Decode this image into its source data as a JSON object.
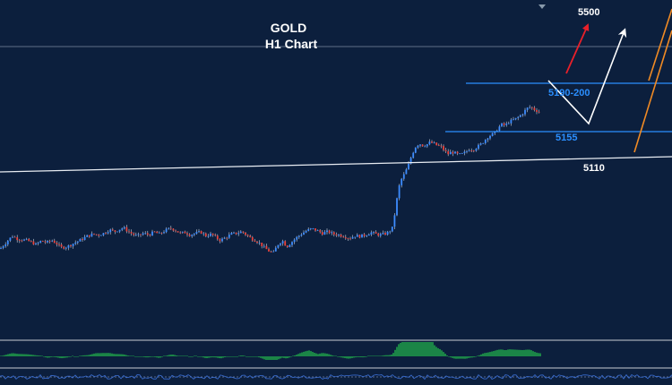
{
  "chart_data": {
    "type": "candlestick",
    "title": "GOLD",
    "subtitle": "H1 Chart",
    "level_labels": {
      "target": "5500",
      "resistance": "5190-200",
      "support": "5155",
      "trendline": "5110"
    },
    "annotation_values": {
      "target": 5500,
      "resistance_low": 5190,
      "resistance_high": 5200,
      "support": 5155,
      "trendline": 5110
    },
    "price_path": [
      [
        0,
        4935
      ],
      [
        6,
        4948
      ],
      [
        10,
        4958
      ],
      [
        14,
        4965
      ],
      [
        20,
        4958
      ],
      [
        30,
        4955
      ],
      [
        36,
        4950
      ],
      [
        40,
        4945
      ],
      [
        46,
        4954
      ],
      [
        52,
        4950
      ],
      [
        58,
        4955
      ],
      [
        63,
        4948
      ],
      [
        68,
        4938
      ],
      [
        75,
        4940
      ],
      [
        82,
        4948
      ],
      [
        90,
        4956
      ],
      [
        97,
        4965
      ],
      [
        104,
        4970
      ],
      [
        110,
        4968
      ],
      [
        116,
        4972
      ],
      [
        122,
        4980
      ],
      [
        128,
        4976
      ],
      [
        134,
        4982
      ],
      [
        138,
        4985
      ],
      [
        142,
        4978
      ],
      [
        148,
        4970
      ],
      [
        153,
        4965
      ],
      [
        160,
        4972
      ],
      [
        166,
        4968
      ],
      [
        172,
        4975
      ],
      [
        178,
        4970
      ],
      [
        184,
        4978
      ],
      [
        190,
        4984
      ],
      [
        195,
        4980
      ],
      [
        201,
        4972
      ],
      [
        207,
        4974
      ],
      [
        212,
        4968
      ],
      [
        218,
        4972
      ],
      [
        224,
        4975
      ],
      [
        230,
        4966
      ],
      [
        236,
        4970
      ],
      [
        242,
        4960
      ],
      [
        246,
        4955
      ],
      [
        252,
        4962
      ],
      [
        258,
        4970
      ],
      [
        264,
        4972
      ],
      [
        270,
        4976
      ],
      [
        275,
        4968
      ],
      [
        280,
        4960
      ],
      [
        285,
        4955
      ],
      [
        290,
        4948
      ],
      [
        295,
        4938
      ],
      [
        300,
        4930
      ],
      [
        305,
        4925
      ],
      [
        310,
        4945
      ],
      [
        315,
        4955
      ],
      [
        320,
        4940
      ],
      [
        325,
        4950
      ],
      [
        330,
        4960
      ],
      [
        336,
        4970
      ],
      [
        342,
        4978
      ],
      [
        348,
        4983
      ],
      [
        354,
        4978
      ],
      [
        360,
        4972
      ],
      [
        366,
        4976
      ],
      [
        372,
        4970
      ],
      [
        378,
        4968
      ],
      [
        384,
        4965
      ],
      [
        390,
        4960
      ],
      [
        396,
        4966
      ],
      [
        402,
        4965
      ],
      [
        408,
        4968
      ],
      [
        414,
        4974
      ],
      [
        418,
        4971
      ],
      [
        424,
        4968
      ],
      [
        430,
        4971
      ],
      [
        434,
        4975
      ],
      [
        438,
        4985
      ],
      [
        440,
        5010
      ],
      [
        442,
        5040
      ],
      [
        445,
        5080
      ],
      [
        448,
        5100
      ],
      [
        452,
        5115
      ],
      [
        456,
        5135
      ],
      [
        460,
        5160
      ],
      [
        464,
        5178
      ],
      [
        468,
        5185
      ],
      [
        472,
        5180
      ],
      [
        476,
        5182
      ],
      [
        480,
        5188
      ],
      [
        484,
        5185
      ],
      [
        488,
        5180
      ],
      [
        492,
        5178
      ],
      [
        496,
        5168
      ],
      [
        500,
        5160
      ],
      [
        504,
        5165
      ],
      [
        508,
        5162
      ],
      [
        512,
        5158
      ],
      [
        516,
        5160
      ],
      [
        520,
        5165
      ],
      [
        524,
        5172
      ],
      [
        528,
        5170
      ],
      [
        532,
        5176
      ],
      [
        536,
        5182
      ],
      [
        540,
        5190
      ],
      [
        544,
        5200
      ],
      [
        548,
        5205
      ],
      [
        552,
        5210
      ],
      [
        556,
        5222
      ],
      [
        560,
        5230
      ],
      [
        564,
        5228
      ],
      [
        568,
        5236
      ],
      [
        572,
        5240
      ],
      [
        576,
        5244
      ],
      [
        580,
        5250
      ],
      [
        584,
        5258
      ],
      [
        588,
        5268
      ],
      [
        592,
        5272
      ],
      [
        596,
        5266
      ],
      [
        600,
        5262
      ],
      [
        604,
        5256
      ]
    ],
    "grid": false,
    "legend": "none"
  }
}
